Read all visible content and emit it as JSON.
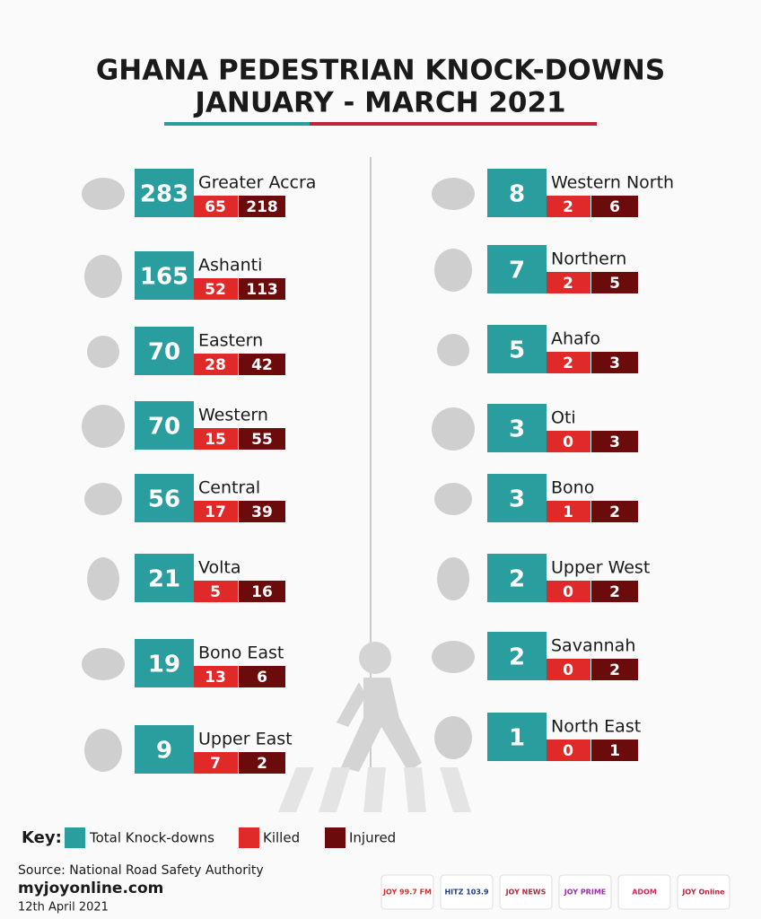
{
  "header": {
    "title_line1": "GHANA PEDESTRIAN KNOCK-DOWNS",
    "title_line2": "JANUARY - MARCH 2021"
  },
  "left_column": [
    {
      "region": "Greater Accra",
      "total": 283,
      "killed": 65,
      "injured": 218
    },
    {
      "region": "Ashanti",
      "total": 165,
      "killed": 52,
      "injured": 113
    },
    {
      "region": "Eastern",
      "total": 70,
      "killed": 28,
      "injured": 42
    },
    {
      "region": "Western",
      "total": 70,
      "killed": 15,
      "injured": 55
    },
    {
      "region": "Central",
      "total": 56,
      "killed": 17,
      "injured": 39
    },
    {
      "region": "Volta",
      "total": 21,
      "killed": 5,
      "injured": 16
    },
    {
      "region": "Bono East",
      "total": 19,
      "killed": 13,
      "injured": 6
    },
    {
      "region": "Upper East",
      "total": 9,
      "killed": 7,
      "injured": 2
    }
  ],
  "right_column": [
    {
      "region": "Western North",
      "total": 8,
      "killed": 2,
      "injured": 6
    },
    {
      "region": "Northern",
      "total": 7,
      "killed": 2,
      "injured": 5
    },
    {
      "region": "Ahafo",
      "total": 5,
      "killed": 2,
      "injured": 3
    },
    {
      "region": "Oti",
      "total": 3,
      "killed": 0,
      "injured": 3
    },
    {
      "region": "Bono",
      "total": 3,
      "killed": 1,
      "injured": 2
    },
    {
      "region": "Upper West",
      "total": 2,
      "killed": 0,
      "injured": 2
    },
    {
      "region": "Savannah",
      "total": 2,
      "killed": 0,
      "injured": 2
    },
    {
      "region": "North East",
      "total": 1,
      "killed": 0,
      "injured": 1
    }
  ],
  "key": {
    "label": "Key:",
    "total": "Total Knock-downs",
    "killed": "Killed",
    "injured": "Injured"
  },
  "footer": {
    "source": "Source: National Road Safety Authority",
    "site": "myjoyonline.com",
    "date": "12th April 2021"
  },
  "logos": [
    "JOY 99.7 FM",
    "HITZ 103.9",
    "JOY NEWS",
    "JOY PRIME",
    "ADOM",
    "JOY Online"
  ]
}
